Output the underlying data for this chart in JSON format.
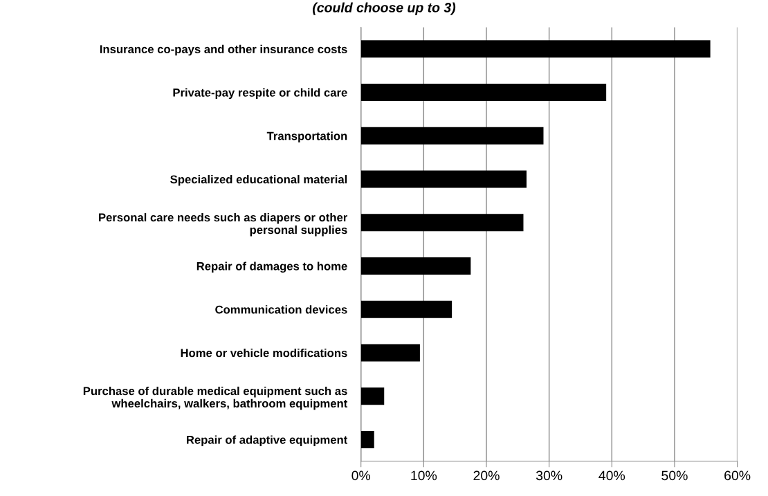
{
  "chart_data": {
    "type": "bar",
    "orientation": "horizontal",
    "title": "(could choose up to 3)",
    "categories": [
      "Insurance co-pays and other insurance costs",
      "Private-pay respite or child care",
      "Transportation",
      "Specialized educational material",
      "Personal care needs such as diapers or other\npersonal supplies",
      "Repair of damages to home",
      "Communication devices",
      "Home or vehicle modifications",
      "Purchase of durable medical equipment such as\nwheelchairs, walkers, bathroom equipment",
      "Repair of adaptive equipment"
    ],
    "values": [
      55.7,
      39.1,
      29.1,
      26.4,
      25.9,
      17.5,
      14.5,
      9.4,
      3.7,
      2.1
    ],
    "color": "#000000",
    "xlim": [
      0,
      60
    ],
    "xticks": [
      {
        "value": 0,
        "label": "0%"
      },
      {
        "value": 10,
        "label": "10%"
      },
      {
        "value": 20,
        "label": "20%"
      },
      {
        "value": 30,
        "label": "30%"
      },
      {
        "value": 40,
        "label": "40%"
      },
      {
        "value": 50,
        "label": "50%"
      },
      {
        "value": 60,
        "label": "60%"
      }
    ],
    "grid": "x",
    "legend": false
  }
}
